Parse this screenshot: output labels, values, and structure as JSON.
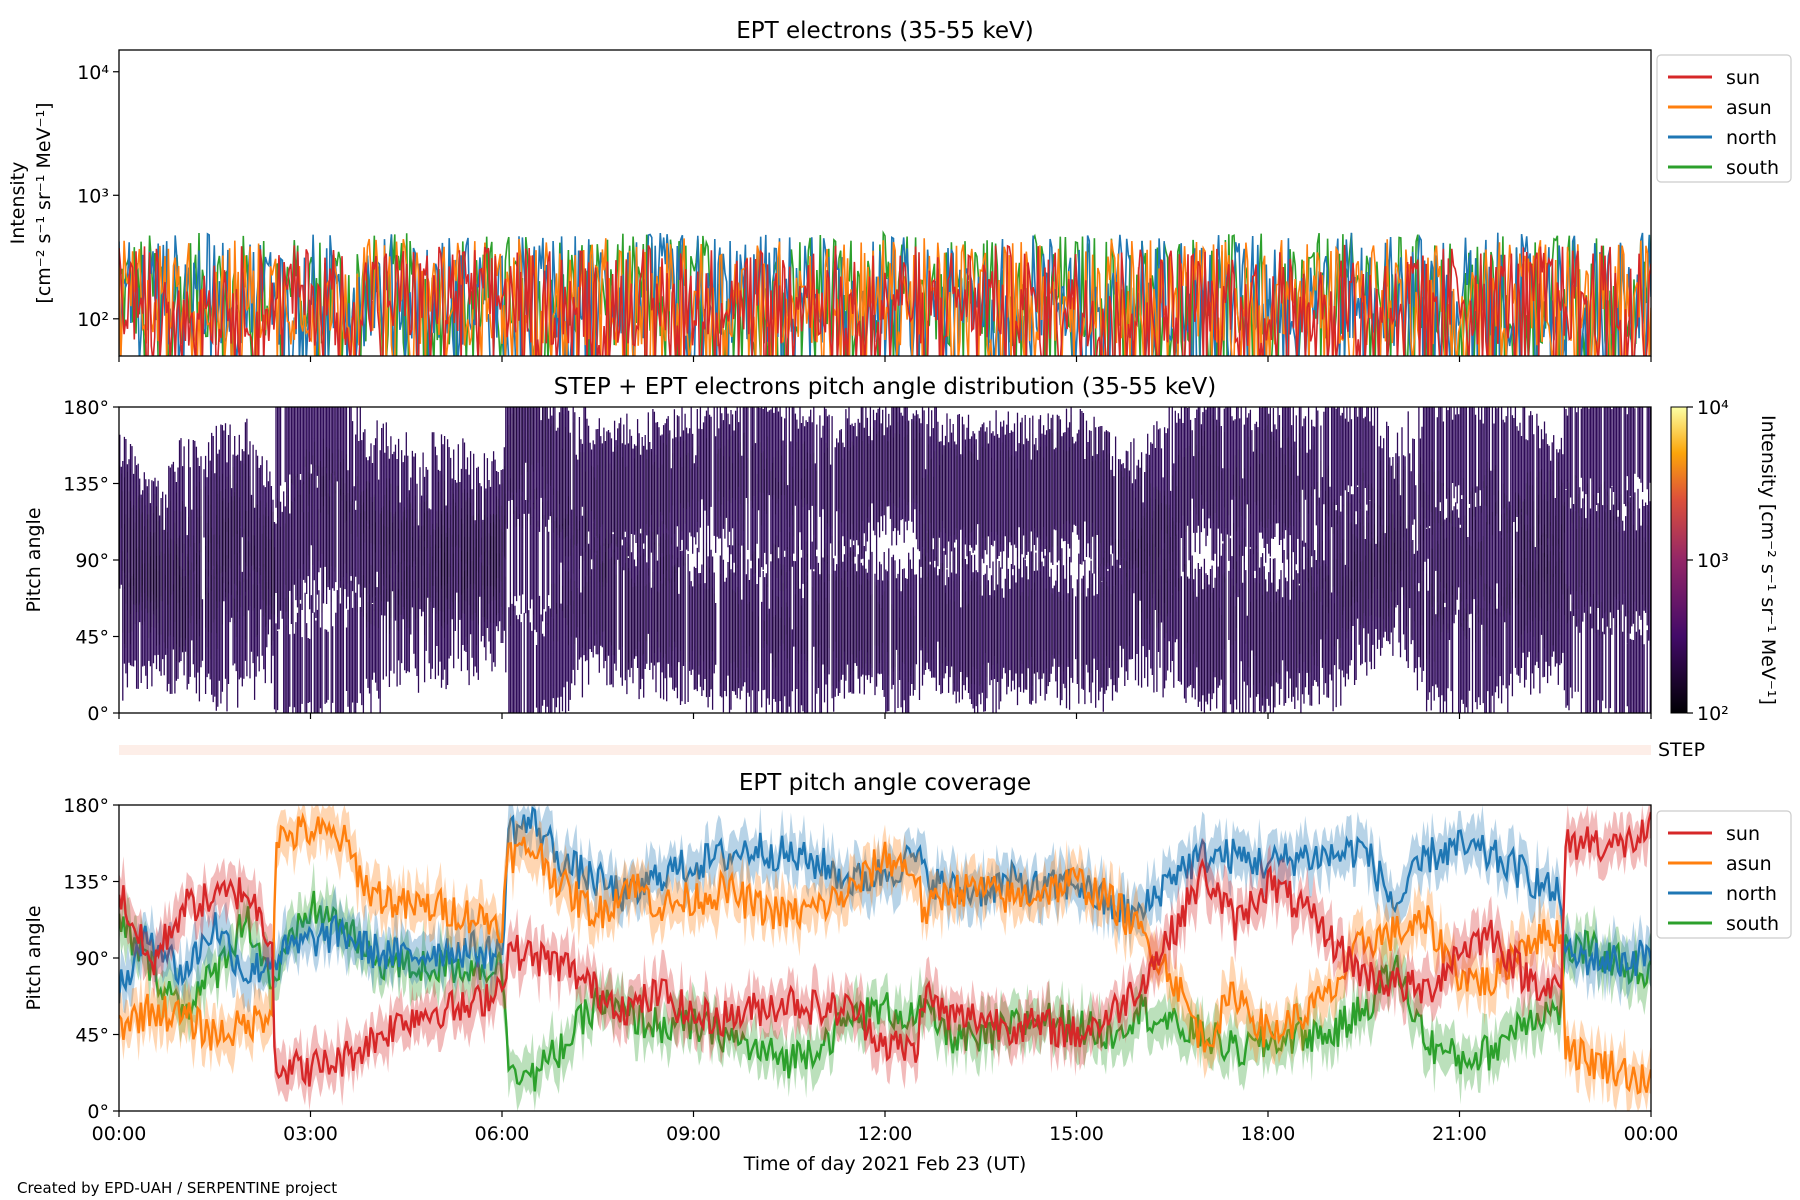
{
  "figure": {
    "credit": "Created by EPD-UAH / SERPENTINE project",
    "xlabel": "Time of day 2021 Feb 23 (UT)",
    "x_ticks": [
      "00:00",
      "03:00",
      "06:00",
      "09:00",
      "12:00",
      "15:00",
      "18:00",
      "21:00",
      "00:00"
    ]
  },
  "chart_data": [
    {
      "type": "line",
      "title": "EPT electrons (35-55 keV)",
      "ylabel_line1": "Intensity",
      "ylabel_line2": "[cm⁻² s⁻¹ sr⁻¹ MeV⁻¹]",
      "yscale": "log",
      "ylim": [
        50,
        15000
      ],
      "y_ticks": [
        "10²",
        "10³",
        "10⁴"
      ],
      "x_range_hours": [
        0,
        24
      ],
      "legend": "outside-right",
      "series": [
        {
          "name": "sun",
          "color": "#d62728",
          "typical_range": [
            60,
            400
          ]
        },
        {
          "name": "asun",
          "color": "#ff7f0e",
          "typical_range": [
            60,
            450
          ]
        },
        {
          "name": "north",
          "color": "#1f77b4",
          "typical_range": [
            60,
            500
          ]
        },
        {
          "name": "south",
          "color": "#2ca02c",
          "typical_range": [
            60,
            500
          ]
        }
      ]
    },
    {
      "type": "heatmap",
      "title": "STEP + EPT electrons pitch angle distribution (35-55 keV)",
      "ylabel": "Pitch angle",
      "ylim": [
        0,
        180
      ],
      "y_ticks": [
        "0°",
        "45°",
        "90°",
        "135°",
        "180°"
      ],
      "colorbar_label": "Intensity [cm⁻² s⁻¹ sr⁻¹ MeV⁻¹]",
      "colorbar_ticks": [
        "10²",
        "10³",
        "10⁴"
      ],
      "colorscale": "inferno",
      "fill_color": "#3b0f6f"
    },
    {
      "type": "table",
      "label": "STEP",
      "fill_color": "#fdeee8"
    },
    {
      "type": "line",
      "title": "EPT pitch angle coverage",
      "ylabel": "Pitch angle",
      "ylim": [
        0,
        180
      ],
      "y_ticks": [
        "0°",
        "45°",
        "90°",
        "135°",
        "180°"
      ],
      "x_range_hours": [
        0,
        24
      ],
      "legend": "outside-right",
      "series": [
        {
          "name": "sun",
          "color": "#d62728",
          "points": [
            [
              0,
              130
            ],
            [
              0.5,
              85
            ],
            [
              1,
              120
            ],
            [
              1.5,
              125
            ],
            [
              2,
              130
            ],
            [
              2.4,
              100
            ],
            [
              2.45,
              25
            ],
            [
              3,
              25
            ],
            [
              3.5,
              30
            ],
            [
              3.9,
              40
            ],
            [
              4.5,
              55
            ],
            [
              5,
              60
            ],
            [
              5.5,
              60
            ],
            [
              6,
              75
            ],
            [
              6.1,
              95
            ],
            [
              7,
              85
            ],
            [
              7.5,
              70
            ],
            [
              8,
              60
            ],
            [
              8.5,
              70
            ],
            [
              9,
              55
            ],
            [
              9.5,
              55
            ],
            [
              10,
              60
            ],
            [
              10.5,
              65
            ],
            [
              11,
              60
            ],
            [
              11.5,
              60
            ],
            [
              12,
              40
            ],
            [
              12.5,
              35
            ],
            [
              12.6,
              70
            ],
            [
              13,
              55
            ],
            [
              13.5,
              55
            ],
            [
              14,
              50
            ],
            [
              14.5,
              50
            ],
            [
              15,
              45
            ],
            [
              15.5,
              55
            ],
            [
              16,
              75
            ],
            [
              16.5,
              105
            ],
            [
              17,
              140
            ],
            [
              17.5,
              110
            ],
            [
              18,
              135
            ],
            [
              18.5,
              120
            ],
            [
              19,
              100
            ],
            [
              19.5,
              80
            ],
            [
              20,
              75
            ],
            [
              20.5,
              70
            ],
            [
              21,
              95
            ],
            [
              21.5,
              105
            ],
            [
              22,
              80
            ],
            [
              22.6,
              70
            ],
            [
              22.65,
              155
            ],
            [
              23,
              160
            ],
            [
              23.5,
              155
            ],
            [
              24,
              165
            ]
          ]
        },
        {
          "name": "asun",
          "color": "#ff7f0e",
          "points": [
            [
              0,
              50
            ],
            [
              0.5,
              60
            ],
            [
              1,
              55
            ],
            [
              1.5,
              45
            ],
            [
              2,
              50
            ],
            [
              2.4,
              60
            ],
            [
              2.45,
              160
            ],
            [
              3,
              165
            ],
            [
              3.5,
              160
            ],
            [
              3.9,
              130
            ],
            [
              4.5,
              120
            ],
            [
              5,
              120
            ],
            [
              5.5,
              115
            ],
            [
              6,
              110
            ],
            [
              6.1,
              150
            ],
            [
              6.5,
              155
            ],
            [
              7,
              130
            ],
            [
              7.5,
              115
            ],
            [
              8,
              135
            ],
            [
              8.5,
              120
            ],
            [
              9,
              125
            ],
            [
              9.5,
              130
            ],
            [
              10,
              120
            ],
            [
              10.5,
              115
            ],
            [
              11,
              120
            ],
            [
              11.5,
              130
            ],
            [
              12,
              150
            ],
            [
              12.5,
              140
            ],
            [
              12.6,
              115
            ],
            [
              13,
              130
            ],
            [
              13.5,
              130
            ],
            [
              14,
              125
            ],
            [
              14.5,
              130
            ],
            [
              15,
              135
            ],
            [
              15.5,
              125
            ],
            [
              16,
              105
            ],
            [
              16.5,
              80
            ],
            [
              17,
              40
            ],
            [
              17.5,
              70
            ],
            [
              18,
              45
            ],
            [
              18.5,
              55
            ],
            [
              19,
              70
            ],
            [
              19.5,
              100
            ],
            [
              20,
              105
            ],
            [
              20.5,
              110
            ],
            [
              21,
              80
            ],
            [
              21.5,
              75
            ],
            [
              22,
              100
            ],
            [
              22.6,
              105
            ],
            [
              22.65,
              40
            ],
            [
              23,
              30
            ],
            [
              23.5,
              25
            ],
            [
              24,
              15
            ]
          ]
        },
        {
          "name": "north",
          "color": "#1f77b4",
          "points": [
            [
              0,
              70
            ],
            [
              0.5,
              105
            ],
            [
              1,
              80
            ],
            [
              1.5,
              110
            ],
            [
              2,
              80
            ],
            [
              2.4,
              90
            ],
            [
              3,
              100
            ],
            [
              3.5,
              105
            ],
            [
              3.9,
              95
            ],
            [
              4.5,
              90
            ],
            [
              5,
              95
            ],
            [
              5.5,
              95
            ],
            [
              6,
              92
            ],
            [
              6.1,
              165
            ],
            [
              6.5,
              170
            ],
            [
              7,
              145
            ],
            [
              7.5,
              135
            ],
            [
              8,
              125
            ],
            [
              8.5,
              140
            ],
            [
              9,
              145
            ],
            [
              9.5,
              150
            ],
            [
              10,
              155
            ],
            [
              10.5,
              150
            ],
            [
              11,
              145
            ],
            [
              11.5,
              135
            ],
            [
              12,
              140
            ],
            [
              12.5,
              150
            ],
            [
              12.6,
              140
            ],
            [
              13,
              130
            ],
            [
              13.5,
              130
            ],
            [
              14,
              135
            ],
            [
              14.5,
              130
            ],
            [
              15,
              135
            ],
            [
              15.5,
              120
            ],
            [
              16,
              115
            ],
            [
              16.5,
              140
            ],
            [
              17,
              150
            ],
            [
              17.5,
              150
            ],
            [
              18,
              145
            ],
            [
              18.5,
              150
            ],
            [
              19,
              150
            ],
            [
              19.5,
              155
            ],
            [
              20,
              120
            ],
            [
              20.5,
              150
            ],
            [
              21,
              155
            ],
            [
              21.5,
              150
            ],
            [
              22,
              140
            ],
            [
              22.6,
              125
            ],
            [
              22.65,
              90
            ],
            [
              23,
              90
            ],
            [
              23.5,
              88
            ],
            [
              24,
              92
            ]
          ]
        },
        {
          "name": "south",
          "color": "#2ca02c",
          "points": [
            [
              0,
              110
            ],
            [
              0.5,
              85
            ],
            [
              1,
              60
            ],
            [
              1.5,
              80
            ],
            [
              2,
              115
            ],
            [
              2.4,
              75
            ],
            [
              3,
              120
            ],
            [
              3.5,
              110
            ],
            [
              3.9,
              90
            ],
            [
              4.5,
              85
            ],
            [
              5,
              85
            ],
            [
              5.5,
              85
            ],
            [
              6,
              85
            ],
            [
              6.1,
              30
            ],
            [
              6.5,
              20
            ],
            [
              7,
              40
            ],
            [
              7.5,
              65
            ],
            [
              8,
              55
            ],
            [
              8.5,
              50
            ],
            [
              9,
              50
            ],
            [
              9.5,
              45
            ],
            [
              10,
              35
            ],
            [
              10.5,
              30
            ],
            [
              11,
              40
            ],
            [
              11.5,
              55
            ],
            [
              12,
              60
            ],
            [
              12.5,
              55
            ],
            [
              12.6,
              60
            ],
            [
              13,
              45
            ],
            [
              13.5,
              40
            ],
            [
              14,
              50
            ],
            [
              14.5,
              55
            ],
            [
              15,
              50
            ],
            [
              15.5,
              45
            ],
            [
              16,
              60
            ],
            [
              16.5,
              50
            ],
            [
              17,
              45
            ],
            [
              17.5,
              35
            ],
            [
              18,
              40
            ],
            [
              18.5,
              45
            ],
            [
              19,
              45
            ],
            [
              19.5,
              60
            ],
            [
              20,
              85
            ],
            [
              20.5,
              40
            ],
            [
              21,
              30
            ],
            [
              21.5,
              35
            ],
            [
              22,
              55
            ],
            [
              22.6,
              60
            ],
            [
              22.65,
              95
            ],
            [
              23,
              95
            ],
            [
              23.5,
              88
            ],
            [
              24,
              80
            ]
          ]
        }
      ]
    }
  ]
}
